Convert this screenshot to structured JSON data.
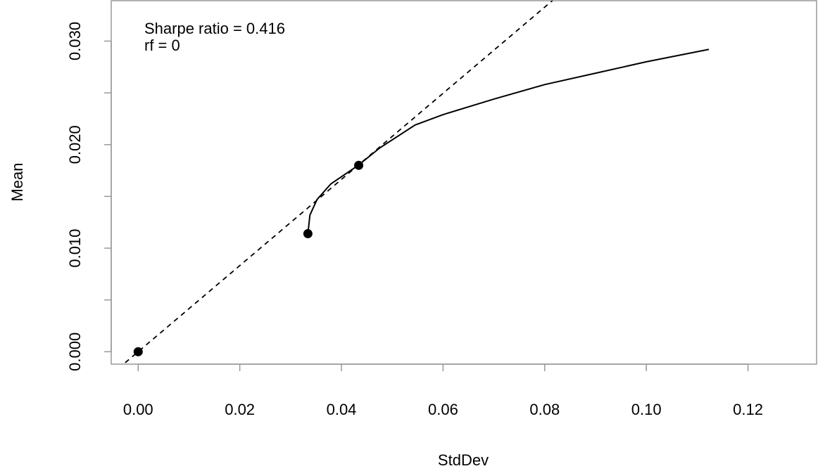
{
  "chart_data": {
    "type": "line",
    "annotations": [
      "Sharpe ratio = 0.416",
      "rf = 0"
    ],
    "xlabel": "StdDev",
    "ylabel": "Mean",
    "xlim": [
      -0.0053,
      0.1335
    ],
    "ylim": [
      -0.0012,
      0.0339
    ],
    "xticks": [
      {
        "value": 0,
        "label": "0.00"
      },
      {
        "value": 0.02,
        "label": "0.02"
      },
      {
        "value": 0.04,
        "label": "0.04"
      },
      {
        "value": 0.06,
        "label": "0.06"
      },
      {
        "value": 0.08,
        "label": "0.08"
      },
      {
        "value": 0.1,
        "label": "0.10"
      },
      {
        "value": 0.12,
        "label": "0.12"
      }
    ],
    "yticks": [
      {
        "value": 0,
        "label": "0.000"
      },
      {
        "value": 0.005,
        "label": null
      },
      {
        "value": 0.01,
        "label": "0.010"
      },
      {
        "value": 0.015,
        "label": null
      },
      {
        "value": 0.02,
        "label": "0.020"
      },
      {
        "value": 0.025,
        "label": null
      },
      {
        "value": 0.03,
        "label": "0.030"
      }
    ],
    "frontier": {
      "color": "#000000",
      "x": [
        0.0334,
        0.0338,
        0.0352,
        0.0379,
        0.0433,
        0.0476,
        0.0545,
        0.06,
        0.07,
        0.08,
        0.09,
        0.1,
        0.1123
      ],
      "values": [
        0.0114,
        0.0132,
        0.0147,
        0.0162,
        0.018,
        0.0197,
        0.0219,
        0.0229,
        0.0244,
        0.0258,
        0.0269,
        0.028,
        0.0292
      ]
    },
    "points": {
      "color": "#000000",
      "x": [
        0,
        0.0334,
        0.0434
      ],
      "values": [
        0,
        0.0114,
        0.018
      ]
    },
    "tangent": {
      "color": "#000000",
      "intercept": 0,
      "slope": 0.416
    }
  }
}
